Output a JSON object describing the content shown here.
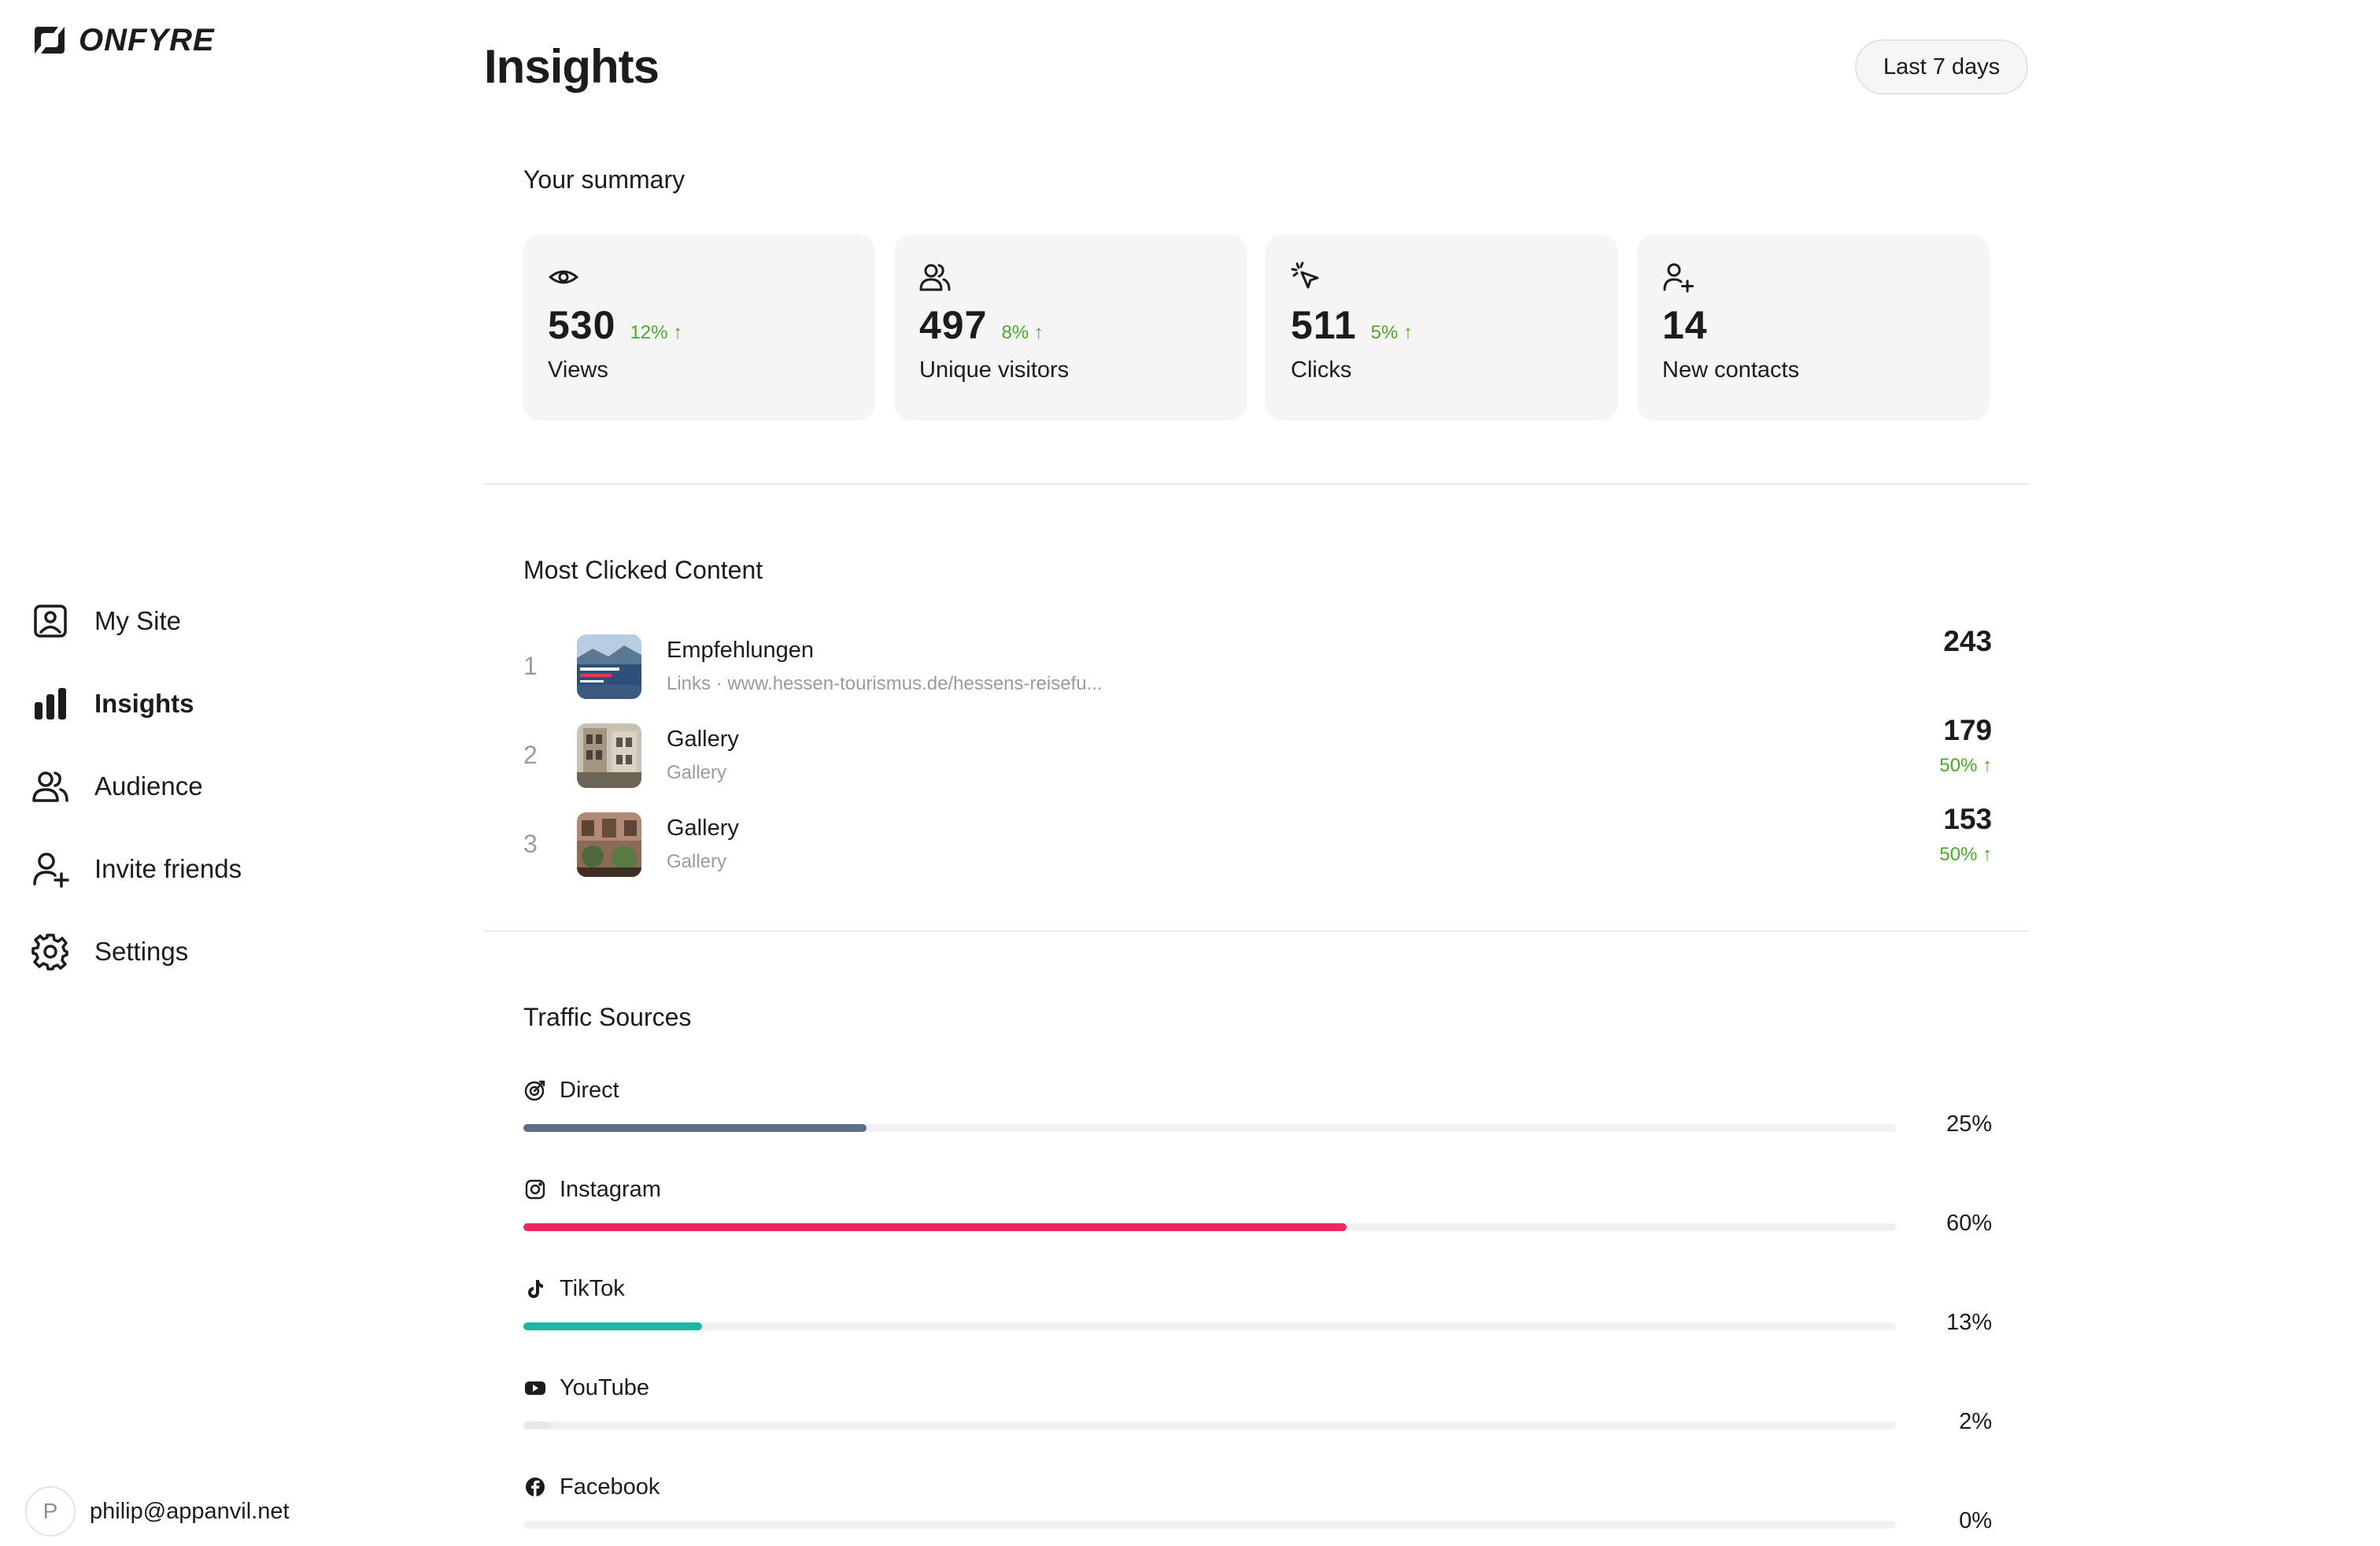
{
  "app": {
    "brand": "ONFYRE"
  },
  "sidebar": {
    "items": [
      {
        "label": "My Site",
        "icon": "profile-card-icon"
      },
      {
        "label": "Insights",
        "icon": "bar-chart-icon",
        "active": true
      },
      {
        "label": "Audience",
        "icon": "users-icon"
      },
      {
        "label": "Invite friends",
        "icon": "add-user-icon"
      },
      {
        "label": "Settings",
        "icon": "gear-icon"
      }
    ]
  },
  "account": {
    "initial": "P",
    "email": "philip@appanvil.net"
  },
  "header": {
    "title": "Insights",
    "range_label": "Last 7 days"
  },
  "summary": {
    "title": "Your summary",
    "cards": [
      {
        "value": "530",
        "delta": "12% ↑",
        "label": "Views",
        "icon": "eye-icon"
      },
      {
        "value": "497",
        "delta": "8% ↑",
        "label": "Unique visitors",
        "icon": "users-icon"
      },
      {
        "value": "511",
        "delta": "5% ↑",
        "label": "Clicks",
        "icon": "cursor-click-icon"
      },
      {
        "value": "14",
        "delta": "",
        "label": "New contacts",
        "icon": "add-user-icon"
      }
    ]
  },
  "most_clicked": {
    "title": "Most Clicked Content",
    "rows": [
      {
        "rank": "1",
        "title": "Empfehlungen",
        "subtitle": "Links · www.hessen-tourismus.de/hessens-reisefu...",
        "count": "243",
        "delta": ""
      },
      {
        "rank": "2",
        "title": "Gallery",
        "subtitle": "Gallery",
        "count": "179",
        "delta": "50% ↑"
      },
      {
        "rank": "3",
        "title": "Gallery",
        "subtitle": "Gallery",
        "count": "153",
        "delta": "50% ↑"
      }
    ]
  },
  "traffic": {
    "title": "Traffic Sources",
    "sources": [
      {
        "name": "Direct",
        "icon": "direct-icon",
        "percent": 25,
        "label": "25%",
        "color": "#5b7088"
      },
      {
        "name": "Instagram",
        "icon": "instagram-icon",
        "percent": 60,
        "label": "60%",
        "color": "#ea2a5c"
      },
      {
        "name": "TikTok",
        "icon": "tiktok-icon",
        "percent": 13,
        "label": "13%",
        "color": "#1db5a3"
      },
      {
        "name": "YouTube",
        "icon": "youtube-icon",
        "percent": 2,
        "label": "2%",
        "color": "#e8e8ea"
      },
      {
        "name": "Facebook",
        "icon": "facebook-icon",
        "percent": 0,
        "label": "0%",
        "color": "#e8e8ea"
      }
    ]
  },
  "colors": {
    "positive": "#4ea72e",
    "card_bg": "#f5f5f6",
    "text": "#1c1c1e",
    "muted": "#9a9aa0"
  }
}
